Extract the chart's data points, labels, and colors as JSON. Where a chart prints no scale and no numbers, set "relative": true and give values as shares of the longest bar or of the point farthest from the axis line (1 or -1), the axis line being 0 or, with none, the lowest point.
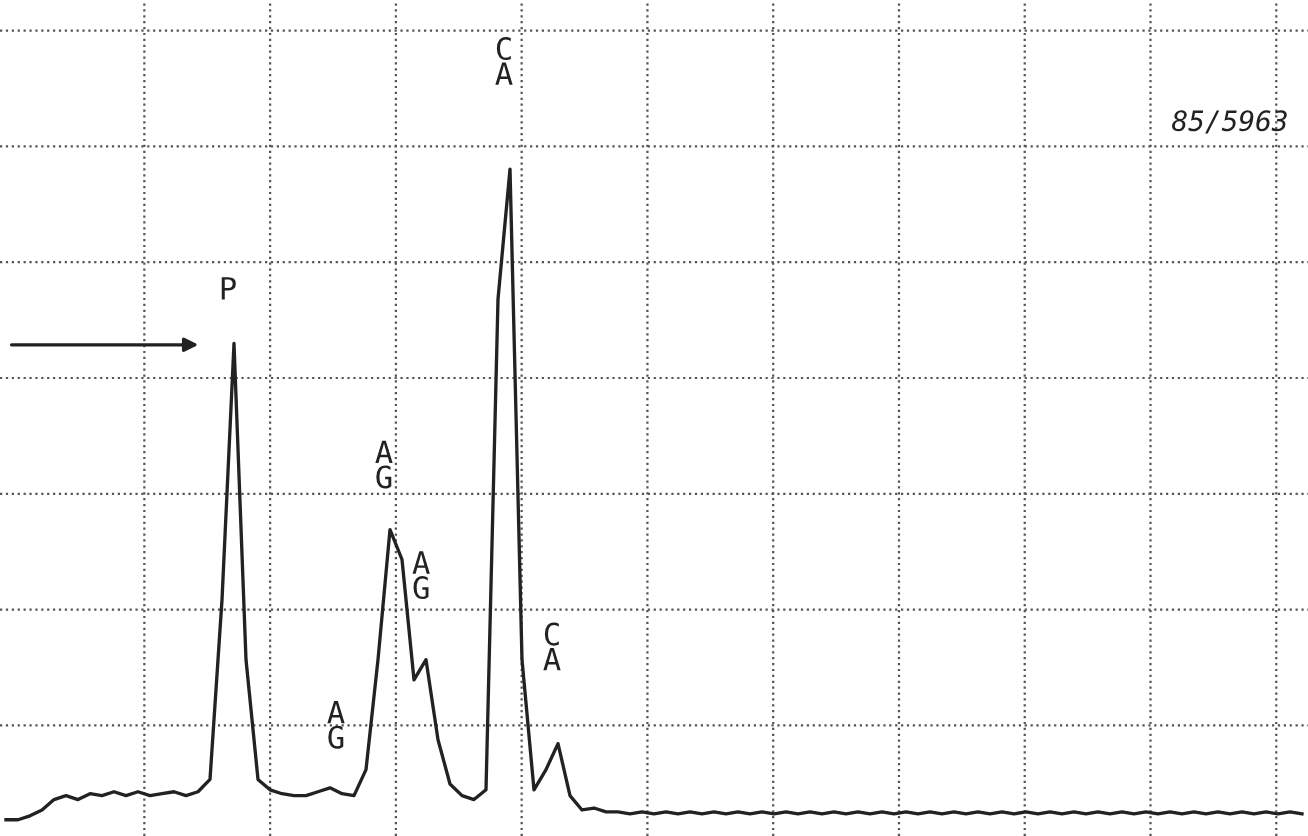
{
  "chart_data": {
    "type": "line",
    "relative": true,
    "grid": true,
    "color": "#222222",
    "categories": [
      null,
      null,
      null,
      null,
      null,
      null,
      null,
      null,
      null,
      null,
      null,
      null,
      null,
      null,
      null,
      null,
      null,
      null,
      null,
      null,
      null,
      null,
      null,
      null,
      null,
      null,
      null,
      null,
      null,
      null,
      null,
      null,
      null,
      null,
      null,
      null,
      null,
      null,
      null,
      null,
      null,
      null,
      null,
      null,
      null,
      null,
      null,
      null,
      null,
      null,
      null,
      null,
      null,
      null,
      null,
      null,
      null,
      null,
      null,
      null,
      null,
      null,
      null,
      null,
      null,
      null,
      null,
      null,
      null,
      null,
      null,
      null,
      null,
      null,
      null,
      null,
      null,
      null,
      null,
      null,
      null,
      null,
      null,
      null,
      null,
      null,
      null,
      null,
      null,
      null,
      null,
      null,
      null,
      null,
      null,
      null,
      null,
      null,
      null,
      null,
      null,
      null,
      null,
      null,
      null,
      null,
      null,
      null,
      null
    ],
    "values": [
      0,
      0,
      0.006,
      0.015,
      0.031,
      0.037,
      0.031,
      0.04,
      0.037,
      0.043,
      0.037,
      0.043,
      0.037,
      0.04,
      0.043,
      0.037,
      0.043,
      0.062,
      0.338,
      0.732,
      0.246,
      0.062,
      0.046,
      0.04,
      0.037,
      0.037,
      0.043,
      0.049,
      0.04,
      0.037,
      0.077,
      0.246,
      0.446,
      0.4,
      0.215,
      0.246,
      0.123,
      0.055,
      0.037,
      0.031,
      0.046,
      0.8,
      1,
      0.246,
      0.046,
      0.077,
      0.117,
      0.037,
      0.015,
      0.018,
      0.012,
      0.012,
      0.009,
      0.012,
      0.009,
      0.012,
      0.009,
      0.012,
      0.009,
      0.012,
      0.009,
      0.012,
      0.009,
      0.012,
      0.009,
      0.012,
      0.009,
      0.012,
      0.009,
      0.012,
      0.009,
      0.012,
      0.009,
      0.012,
      0.009,
      0.012,
      0.009,
      0.012,
      0.009,
      0.012,
      0.009,
      0.012,
      0.009,
      0.012,
      0.009,
      0.012,
      0.009,
      0.012,
      0.009,
      0.012,
      0.009,
      0.012,
      0.009,
      0.012,
      0.009,
      0.012,
      0.009,
      0.012,
      0.009,
      0.012,
      0.009,
      0.012,
      0.009,
      0.012,
      0.009,
      0.012,
      0.009,
      0.012,
      0.009
    ],
    "annotations": [
      "P",
      "A\nG",
      "A\nG",
      "A\nG",
      "C\nA",
      "C\nA",
      "85/5963"
    ]
  }
}
